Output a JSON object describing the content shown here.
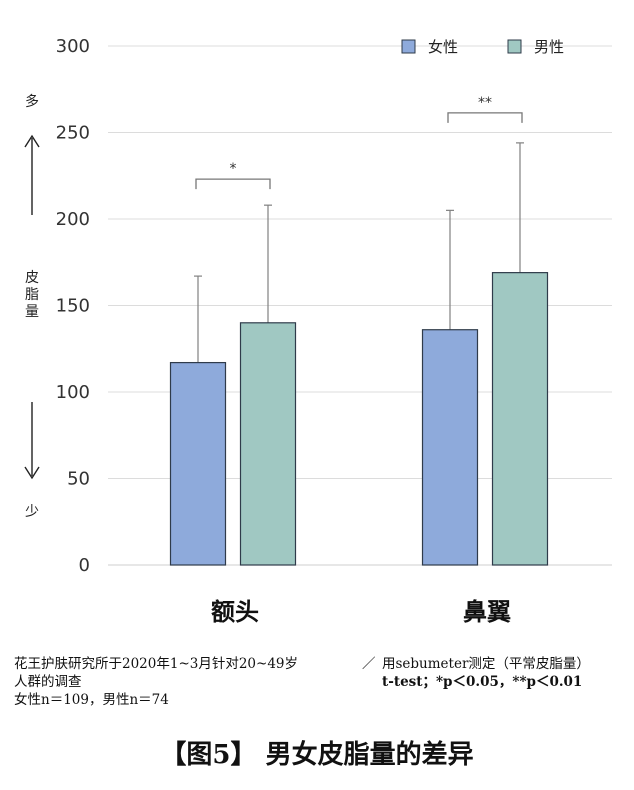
{
  "chart_data": {
    "type": "bar",
    "categories": [
      "额头",
      "鼻翼"
    ],
    "series": [
      {
        "name": "女性",
        "values": [
          117,
          136
        ],
        "error_upper": [
          167,
          205
        ],
        "color": "#8eaadb"
      },
      {
        "name": "男性",
        "values": [
          140,
          169
        ],
        "error_upper": [
          208,
          244
        ],
        "color": "#a0c8c2"
      }
    ],
    "ylim": [
      0,
      300
    ],
    "yticks": [
      0,
      50,
      100,
      150,
      200,
      250,
      300
    ],
    "grid": true,
    "legend_position": "top-right",
    "significance": [
      {
        "category_index": 0,
        "label": "*"
      },
      {
        "category_index": 1,
        "label": "**"
      }
    ],
    "axis_side_labels": {
      "top": "多",
      "middle": "皮脂量",
      "bottom": "少"
    }
  },
  "notes": {
    "left_line1": "花王护肤研究所于2020年1~3月针对20~49岁",
    "left_line2": "人群的调查",
    "left_line3": "女性n＝109，男性n＝74",
    "separator": "／",
    "right_line1": "用sebumeter测定（平常皮脂量）",
    "right_line2": "t-test；*p＜0.05，**p＜0.01"
  },
  "caption": "【图5】 男女皮脂量的差异"
}
